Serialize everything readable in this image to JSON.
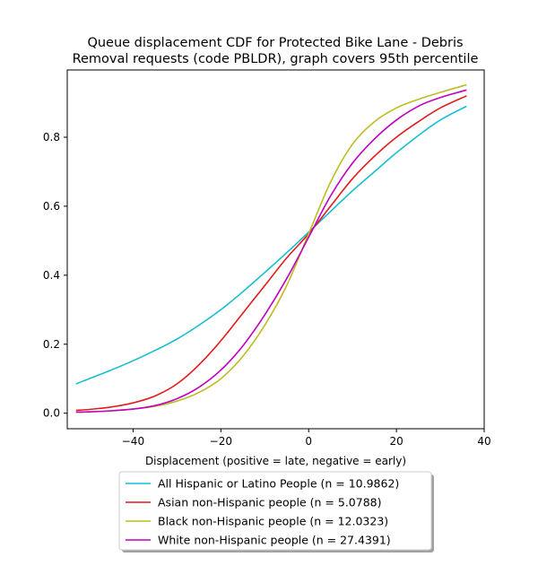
{
  "chart_data": {
    "type": "line",
    "title": "Queue displacement CDF for Protected Bike Lane - Debris\nRemoval  requests (code PBLDR), graph covers 95th percentile",
    "xlabel": "Displacement (positive = late, negative = early)",
    "ylabel": "",
    "xlim": [
      -55,
      40
    ],
    "ylim": [
      -0.045,
      0.995
    ],
    "xticks": [
      -40,
      -20,
      0,
      20,
      40
    ],
    "yticks": [
      0.0,
      0.2,
      0.4,
      0.6,
      0.8
    ],
    "xtick_labels": [
      "−40",
      "−20",
      "0",
      "20",
      "40"
    ],
    "ytick_labels": [
      "0.0",
      "0.2",
      "0.4",
      "0.6",
      "0.8"
    ],
    "grid": false,
    "legend_position": "below-center",
    "series": [
      {
        "name": "All Hispanic or Latino People (n = 10.9862)",
        "color": "#17becf",
        "x": [
          -53,
          -50,
          -45,
          -40,
          -35,
          -30,
          -25,
          -20,
          -15,
          -10,
          -5,
          0,
          5,
          10,
          15,
          20,
          25,
          30,
          36
        ],
        "y": [
          0.085,
          0.1,
          0.125,
          0.152,
          0.182,
          0.215,
          0.255,
          0.3,
          0.352,
          0.408,
          0.465,
          0.525,
          0.585,
          0.645,
          0.7,
          0.755,
          0.805,
          0.85,
          0.89
        ]
      },
      {
        "name": "Asian non-Hispanic people (n = 5.0788)",
        "color": "#e31a1c",
        "x": [
          -53,
          -50,
          -45,
          -40,
          -35,
          -30,
          -25,
          -20,
          -15,
          -10,
          -5,
          0,
          5,
          10,
          15,
          20,
          25,
          30,
          36
        ],
        "y": [
          0.008,
          0.011,
          0.018,
          0.03,
          0.05,
          0.085,
          0.14,
          0.21,
          0.29,
          0.37,
          0.45,
          0.52,
          0.6,
          0.68,
          0.745,
          0.8,
          0.845,
          0.885,
          0.92
        ]
      },
      {
        "name": "Black non-Hispanic people (n = 12.0323)",
        "color": "#bcbd22",
        "x": [
          -53,
          -50,
          -45,
          -40,
          -35,
          -30,
          -25,
          -20,
          -15,
          -10,
          -5,
          0,
          5,
          10,
          15,
          20,
          25,
          30,
          36
        ],
        "y": [
          0.003,
          0.004,
          0.007,
          0.012,
          0.02,
          0.035,
          0.06,
          0.1,
          0.165,
          0.255,
          0.37,
          0.52,
          0.67,
          0.78,
          0.845,
          0.885,
          0.91,
          0.93,
          0.952
        ]
      },
      {
        "name": "White non-Hispanic people (n = 27.4391)",
        "color": "#bf00bf",
        "x": [
          -53,
          -50,
          -45,
          -40,
          -35,
          -30,
          -25,
          -20,
          -15,
          -10,
          -5,
          0,
          5,
          10,
          15,
          20,
          25,
          30,
          36
        ],
        "y": [
          0.003,
          0.004,
          0.007,
          0.012,
          0.022,
          0.042,
          0.075,
          0.125,
          0.195,
          0.285,
          0.39,
          0.51,
          0.63,
          0.725,
          0.795,
          0.85,
          0.89,
          0.915,
          0.937
        ]
      }
    ]
  }
}
